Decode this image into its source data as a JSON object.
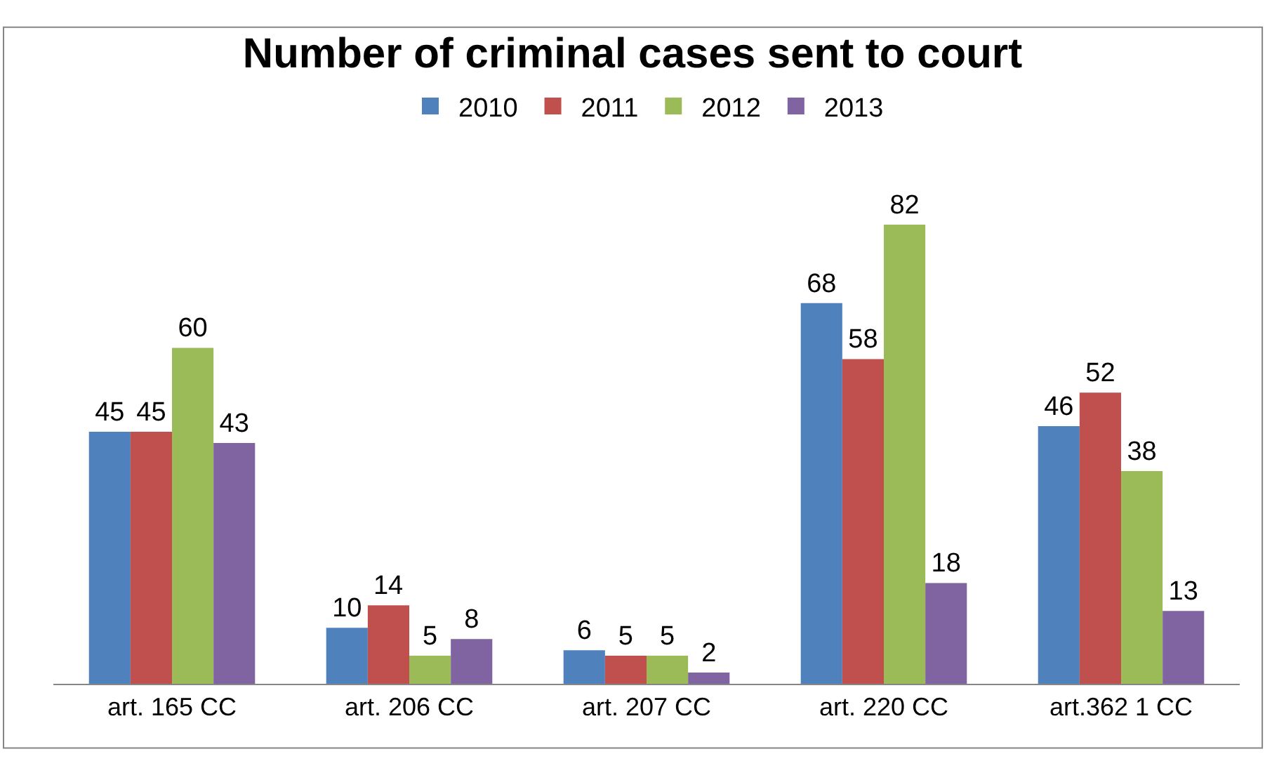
{
  "chart_data": {
    "type": "bar",
    "title": "Number of criminal cases sent to court",
    "categories": [
      "art. 165 CC",
      "art. 206 CC",
      "art. 207 CC",
      "art. 220 CC",
      "art.362 1 CC"
    ],
    "series": [
      {
        "name": "2010",
        "color": "#4f81bd",
        "values": [
          45,
          10,
          6,
          68,
          46
        ]
      },
      {
        "name": "2011",
        "color": "#c0504d",
        "values": [
          45,
          14,
          5,
          58,
          52
        ]
      },
      {
        "name": "2012",
        "color": "#9bbb59",
        "values": [
          60,
          5,
          5,
          82,
          38
        ]
      },
      {
        "name": "2013",
        "color": "#8064a2",
        "values": [
          43,
          8,
          2,
          18,
          13
        ]
      }
    ],
    "data_labels": true,
    "legend": "top",
    "tick_labels": "x"
  }
}
